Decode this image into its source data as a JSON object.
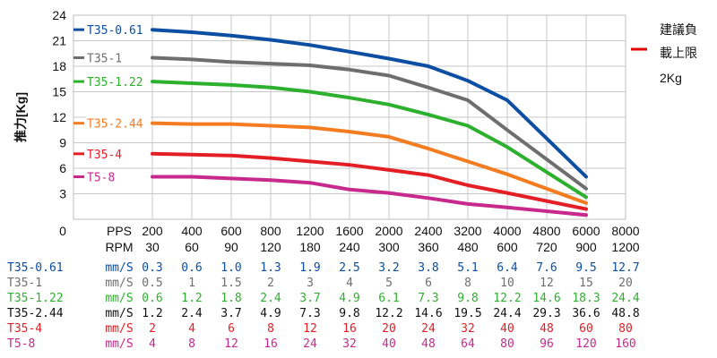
{
  "chart_data": {
    "type": "line",
    "ylabel": "推力[Kg]",
    "yticks": [
      "0",
      "3",
      "6",
      "9",
      "12",
      "15",
      "18",
      "21",
      "24"
    ],
    "ylim": [
      0,
      24
    ],
    "pps": [
      "200",
      "400",
      "600",
      "800",
      "1200",
      "1600",
      "2000",
      "2400",
      "3200",
      "4000",
      "4800",
      "6000",
      "8000"
    ],
    "rpm": [
      "30",
      "60",
      "90",
      "120",
      "180",
      "240",
      "300",
      "360",
      "480",
      "600",
      "720",
      "900",
      "1200"
    ],
    "row_labels": {
      "pps": "PPS",
      "rpm": "RPM"
    },
    "grid": true,
    "note": {
      "lines": [
        "建議負",
        "載上限",
        "2Kg"
      ],
      "color": "#e00000",
      "limit": 2
    },
    "series": [
      {
        "name": "T35-0.61",
        "color": "#0b4ea2",
        "values": [
          22.3,
          22.0,
          21.6,
          21.1,
          20.5,
          19.7,
          18.9,
          18.0,
          16.3,
          14.0,
          null,
          5.0,
          null
        ]
      },
      {
        "name": "T35-1",
        "color": "#6e6e6e",
        "values": [
          19.0,
          18.8,
          18.5,
          18.3,
          18.1,
          17.6,
          16.9,
          15.5,
          14.0,
          10.5,
          null,
          3.6,
          null
        ]
      },
      {
        "name": "T35-1.22",
        "color": "#2db02d",
        "values": [
          16.2,
          16.0,
          15.8,
          15.5,
          15.0,
          14.3,
          13.5,
          12.3,
          11.0,
          8.5,
          null,
          2.6,
          null
        ]
      },
      {
        "name": "T35-2.44",
        "color": "#f47c20",
        "values": [
          11.3,
          11.2,
          11.2,
          11.0,
          10.8,
          10.3,
          9.7,
          8.3,
          6.8,
          5.3,
          null,
          1.9,
          null
        ]
      },
      {
        "name": "T35-4",
        "color": "#e31e24",
        "values": [
          7.7,
          7.6,
          7.5,
          7.2,
          6.8,
          6.4,
          5.8,
          5.2,
          4.0,
          3.1,
          null,
          1.2,
          null
        ]
      },
      {
        "name": "T5-8",
        "color": "#c72a8c",
        "values": [
          5.0,
          5.0,
          4.8,
          4.6,
          4.3,
          3.5,
          3.1,
          2.5,
          1.8,
          1.4,
          null,
          0.5,
          null
        ]
      }
    ],
    "table": {
      "unit": "mm/S",
      "rows": [
        {
          "name": "T35-0.61",
          "color": "#0b4ea2",
          "values": [
            "0.3",
            "0.6",
            "1.0",
            "1.3",
            "1.9",
            "2.5",
            "3.2",
            "3.8",
            "5.1",
            "6.4",
            "7.6",
            "9.5",
            "12.7"
          ]
        },
        {
          "name": "T35-1",
          "color": "#6e6e6e",
          "values": [
            "0.5",
            "1",
            "1.5",
            "2",
            "3",
            "4",
            "5",
            "6",
            "8",
            "10",
            "12",
            "15",
            "20"
          ]
        },
        {
          "name": "T35-1.22",
          "color": "#2db02d",
          "values": [
            "0.6",
            "1.2",
            "1.8",
            "2.4",
            "3.7",
            "4.9",
            "6.1",
            "7.3",
            "9.8",
            "12.2",
            "14.6",
            "18.3",
            "24.4"
          ]
        },
        {
          "name": "T35-2.44",
          "color": "#111111",
          "values": [
            "1.2",
            "2.4",
            "3.7",
            "4.9",
            "7.3",
            "9.8",
            "12.2",
            "14.6",
            "19.5",
            "24.4",
            "29.3",
            "36.6",
            "48.8"
          ]
        },
        {
          "name": "T35-4",
          "color": "#e31e24",
          "values": [
            "2",
            "4",
            "6",
            "8",
            "12",
            "16",
            "20",
            "24",
            "32",
            "40",
            "48",
            "60",
            "80"
          ]
        },
        {
          "name": "T5-8",
          "color": "#c72a8c",
          "values": [
            "4",
            "8",
            "12",
            "16",
            "24",
            "32",
            "40",
            "48",
            "64",
            "80",
            "96",
            "120",
            "160"
          ]
        }
      ]
    }
  }
}
